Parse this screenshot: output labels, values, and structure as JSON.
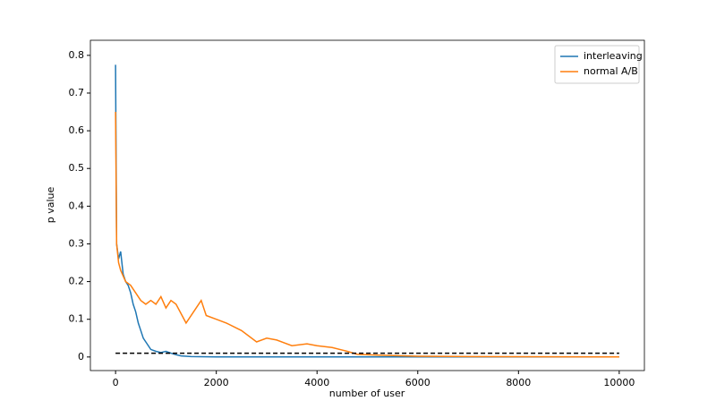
{
  "chart_data": {
    "type": "line",
    "x_label": "number of user",
    "y_label": "p value",
    "xlim": [
      -500,
      10500
    ],
    "ylim": [
      -0.036,
      0.84
    ],
    "xticks": [
      0,
      2000,
      4000,
      6000,
      8000,
      10000
    ],
    "yticks": [
      0.0,
      0.1,
      0.2,
      0.3,
      0.4,
      0.5,
      0.6,
      0.7,
      0.8
    ],
    "legend": "upper right",
    "series": [
      {
        "name": "interleaving",
        "color": "#1f77b4",
        "x": [
          0,
          20,
          60,
          100,
          150,
          200,
          250,
          300,
          350,
          400,
          450,
          500,
          550,
          600,
          700,
          800,
          900,
          1000,
          1100,
          1200,
          1300,
          1500,
          2000,
          4000,
          6000,
          8000,
          10000
        ],
        "values": [
          0.775,
          0.3,
          0.26,
          0.28,
          0.22,
          0.2,
          0.19,
          0.17,
          0.14,
          0.12,
          0.09,
          0.07,
          0.05,
          0.04,
          0.02,
          0.015,
          0.012,
          0.015,
          0.01,
          0.006,
          0.003,
          0.001,
          0.0,
          0.0,
          0.0,
          0.0,
          0.0
        ]
      },
      {
        "name": "normal A/B",
        "color": "#ff7f0e",
        "x": [
          0,
          20,
          60,
          100,
          200,
          300,
          400,
          500,
          600,
          700,
          800,
          900,
          1000,
          1100,
          1200,
          1400,
          1600,
          1700,
          1800,
          2000,
          2200,
          2500,
          2800,
          3000,
          3200,
          3500,
          3800,
          4000,
          4300,
          4600,
          4800,
          5200,
          6000,
          7000,
          10000
        ],
        "values": [
          0.65,
          0.3,
          0.25,
          0.23,
          0.2,
          0.19,
          0.17,
          0.15,
          0.14,
          0.15,
          0.14,
          0.16,
          0.13,
          0.15,
          0.14,
          0.09,
          0.13,
          0.15,
          0.11,
          0.1,
          0.09,
          0.07,
          0.04,
          0.05,
          0.045,
          0.03,
          0.035,
          0.03,
          0.025,
          0.015,
          0.007,
          0.005,
          0.002,
          0.001,
          0.0
        ]
      }
    ],
    "reference_line": {
      "x": [
        0,
        10000
      ],
      "values": [
        0.01,
        0.01
      ],
      "color": "#000000",
      "dashed": true
    }
  }
}
